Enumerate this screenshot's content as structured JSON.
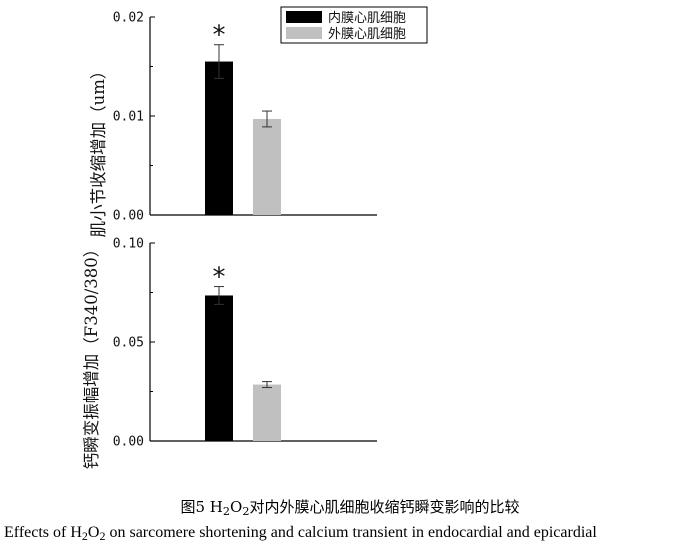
{
  "chart_data": [
    {
      "type": "bar",
      "ylabel": "肌小节收缩增加（um）",
      "ylim": [
        0,
        0.02
      ],
      "yticks": [
        "0.00",
        "0.01",
        "0.02"
      ],
      "series": [
        {
          "name": "内膜心肌细胞",
          "value": 0.0155,
          "error": 0.0017,
          "color": "#000000",
          "significance": "*"
        },
        {
          "name": "外膜心肌细胞",
          "value": 0.0097,
          "error": 0.0008,
          "color": "#c0c0c0",
          "significance": ""
        }
      ],
      "legend": "top-right"
    },
    {
      "type": "bar",
      "ylabel": "钙瞬变振幅增加（F340/380）",
      "ylim": [
        0,
        0.1
      ],
      "yticks": [
        "0.00",
        "0.05",
        "0.10"
      ],
      "series": [
        {
          "name": "内膜心肌细胞",
          "value": 0.0735,
          "error": 0.0045,
          "color": "#000000",
          "significance": "*"
        },
        {
          "name": "外膜心肌细胞",
          "value": 0.0285,
          "error": 0.0015,
          "color": "#c0c0c0",
          "significance": ""
        }
      ]
    }
  ],
  "caption": {
    "zh_prefix": "图5 H",
    "zh_sub1": "2",
    "zh_mid": "O",
    "zh_sub2": "2",
    "zh_suffix": "对内外膜心肌细胞收缩钙瞬变影响的比较",
    "en_prefix": "Effects of H",
    "en_sub1": "2",
    "en_mid": "O",
    "en_sub2": "2",
    "en_suffix": " on sarcomere shortening and calcium transient in endocardial and epicardial"
  }
}
